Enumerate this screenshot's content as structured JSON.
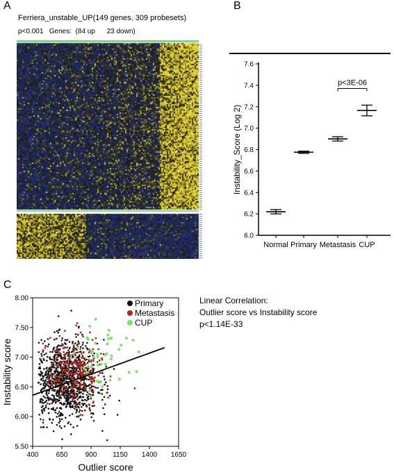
{
  "panelA": {
    "letter": "A",
    "title": "Ferriera_unstable_UP(149 genes, 309 probesets)",
    "stats": "p<0.001   Genes:  (84 up      23 down)",
    "colors": {
      "low": "#1f2f7a",
      "mid": "#1b1b10",
      "high": "#e8d53a",
      "header": "#7fd08a"
    }
  },
  "panelB": {
    "letter": "B",
    "annotation": "p<3E-06"
  },
  "panelC": {
    "letter": "C",
    "legend": [
      "Primary",
      "Metastasis",
      "CUP"
    ],
    "correlation_lines": [
      "Linear Correlation:",
      "Outlier score vs Instability score",
      "p<1.14E-33"
    ],
    "colors": {
      "Primary": "#111111",
      "Metastasis": "#b3261e",
      "CUP": "#7ee06a"
    }
  },
  "chart_data": [
    {
      "type": "heatmap",
      "title": "Ferriera_unstable_UP(149 genes, 309 probesets)",
      "subtitle": "p<0.001   Genes:  (84 up      23 down)",
      "blocks": [
        {
          "name": "up",
          "rows": 84,
          "pattern": "blue left, yellow right"
        },
        {
          "name": "down",
          "rows": 23,
          "pattern": "yellow left, blue right"
        }
      ]
    },
    {
      "type": "scatter",
      "subtype": "mean-with-error-bars",
      "ylabel": "Instability_Score (Log 2)",
      "xlabel": "",
      "categories": [
        "Normal",
        "Primary",
        "Metastasis",
        "CUP"
      ],
      "values": [
        6.22,
        6.775,
        6.9,
        7.165
      ],
      "errors": [
        0.02,
        0.01,
        0.02,
        0.05
      ],
      "ylim": [
        6.0,
        7.6
      ],
      "yticks": [
        "6.0",
        "6.2",
        "6.4",
        "6.6",
        "6.8",
        "7.0",
        "7.2",
        "7.4",
        "7.6"
      ],
      "annotations": [
        {
          "text": "p<3E-06",
          "between": [
            "Metastasis",
            "CUP"
          ]
        }
      ]
    },
    {
      "type": "scatter",
      "xlabel": "Outlier score",
      "ylabel": "Instability score",
      "xlim": [
        400,
        1650
      ],
      "ylim": [
        5.5,
        8.0
      ],
      "xticks": [
        "400",
        "650",
        "900",
        "1150",
        "1400",
        "1650"
      ],
      "yticks": [
        "5.50",
        "6.00",
        "6.50",
        "7.00",
        "7.50",
        "8.00"
      ],
      "series": [
        {
          "name": "Primary",
          "center": [
            680,
            6.6
          ],
          "spread": [
            140,
            0.33
          ]
        },
        {
          "name": "Metastasis",
          "center": [
            760,
            6.75
          ],
          "spread": [
            120,
            0.3
          ]
        },
        {
          "name": "CUP",
          "center": [
            1000,
            6.95
          ],
          "spread": [
            120,
            0.28
          ]
        }
      ],
      "fit_line": {
        "x": [
          400,
          1530
        ],
        "y": [
          6.36,
          7.16
        ]
      },
      "annotation": [
        "Linear Correlation:",
        "Outlier score vs Instability score",
        "p<1.14E-33"
      ]
    }
  ]
}
